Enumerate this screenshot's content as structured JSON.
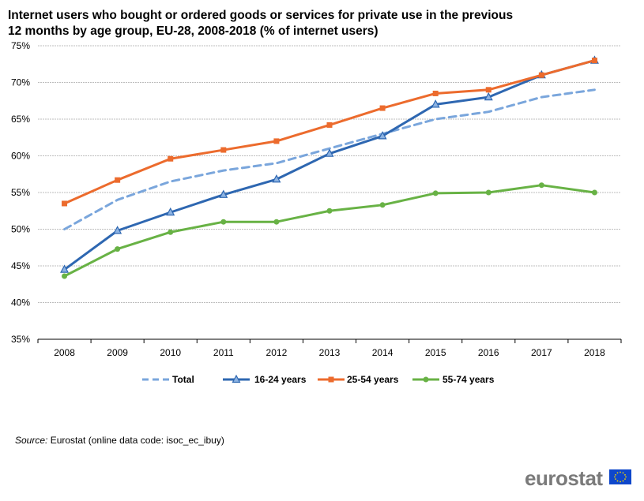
{
  "title": "Internet users who bought or ordered goods or services for private use in the previous 12 months by age group, EU-28, 2008-2018 (% of internet users)",
  "source_lead": "Source:",
  "source_text": "Eurostat (online data code: isoc_ec_ibuy)",
  "logo_text": "eurostat",
  "chart_data": {
    "type": "line",
    "title": "Internet users who bought or ordered goods or services for private use in the previous 12 months by age group, EU-28, 2008-2018 (% of internet users)",
    "xlabel": "",
    "ylabel": "",
    "categories": [
      "2008",
      "2009",
      "2010",
      "2011",
      "2012",
      "2013",
      "2014",
      "2015",
      "2016",
      "2017",
      "2018"
    ],
    "ylim": [
      35,
      75
    ],
    "yticks": [
      "35%",
      "40%",
      "45%",
      "50%",
      "55%",
      "60%",
      "65%",
      "70%",
      "75%"
    ],
    "grid": true,
    "legend_position": "bottom",
    "series": [
      {
        "name": "Total",
        "values": [
          50,
          54,
          56.5,
          58,
          59,
          61,
          63,
          65,
          66,
          68,
          69
        ],
        "color": "#7aa6dc",
        "style": "dashed",
        "marker": "none"
      },
      {
        "name": "16-24 years",
        "values": [
          44.5,
          49.8,
          52.3,
          54.7,
          56.8,
          60.3,
          62.7,
          67,
          68,
          71,
          73
        ],
        "color": "#2e67b1",
        "style": "solid",
        "marker": "triangle"
      },
      {
        "name": "25-54 years",
        "values": [
          53.5,
          56.7,
          59.6,
          60.8,
          62,
          64.2,
          66.5,
          68.5,
          69,
          71,
          73
        ],
        "color": "#ec6b2d",
        "style": "solid",
        "marker": "square"
      },
      {
        "name": "55-74 years",
        "values": [
          43.6,
          47.3,
          49.6,
          51,
          51,
          52.5,
          53.3,
          54.9,
          55,
          56,
          55
        ],
        "color": "#68b245",
        "style": "solid",
        "marker": "circle"
      }
    ]
  }
}
